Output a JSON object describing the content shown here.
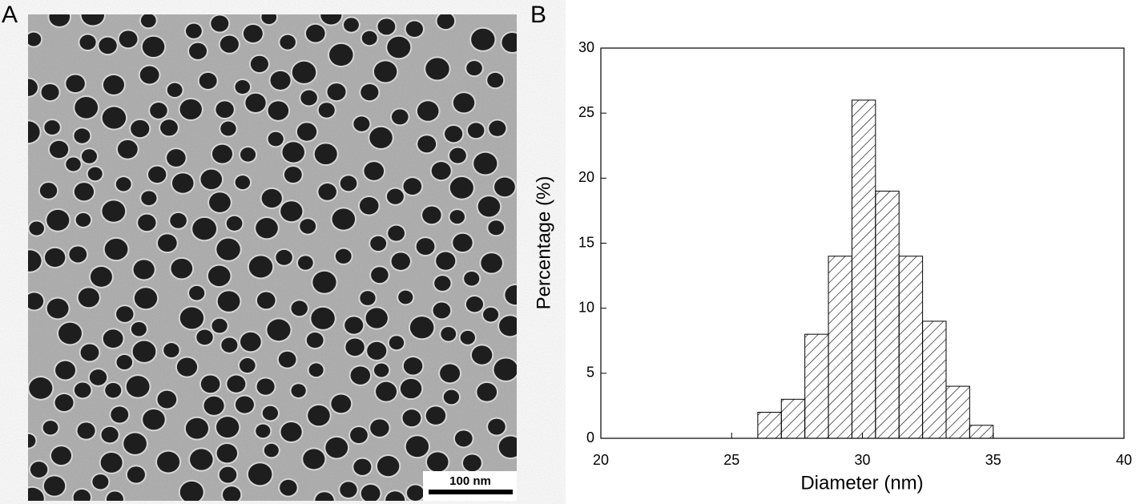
{
  "panel_a": {
    "label": "A",
    "scale_bar": "100 nm"
  },
  "chart_data": {
    "type": "histogram",
    "panel_label": "B",
    "xlabel": "Diameter (nm)",
    "ylabel": "Percentage (%)",
    "bins": [
      26,
      26.9,
      27.8,
      28.7,
      29.6,
      30.5,
      31.4,
      32.3,
      33.2,
      34.1,
      35
    ],
    "counts": [
      2,
      3,
      8,
      14,
      26,
      19,
      14,
      9,
      4,
      1
    ],
    "color": "#000000",
    "xlim": [
      20,
      40
    ],
    "xticks": [
      20,
      25,
      30,
      35,
      40
    ],
    "ylim": [
      0,
      30
    ],
    "yticks": [
      0,
      5,
      10,
      15,
      20,
      25,
      30
    ]
  }
}
